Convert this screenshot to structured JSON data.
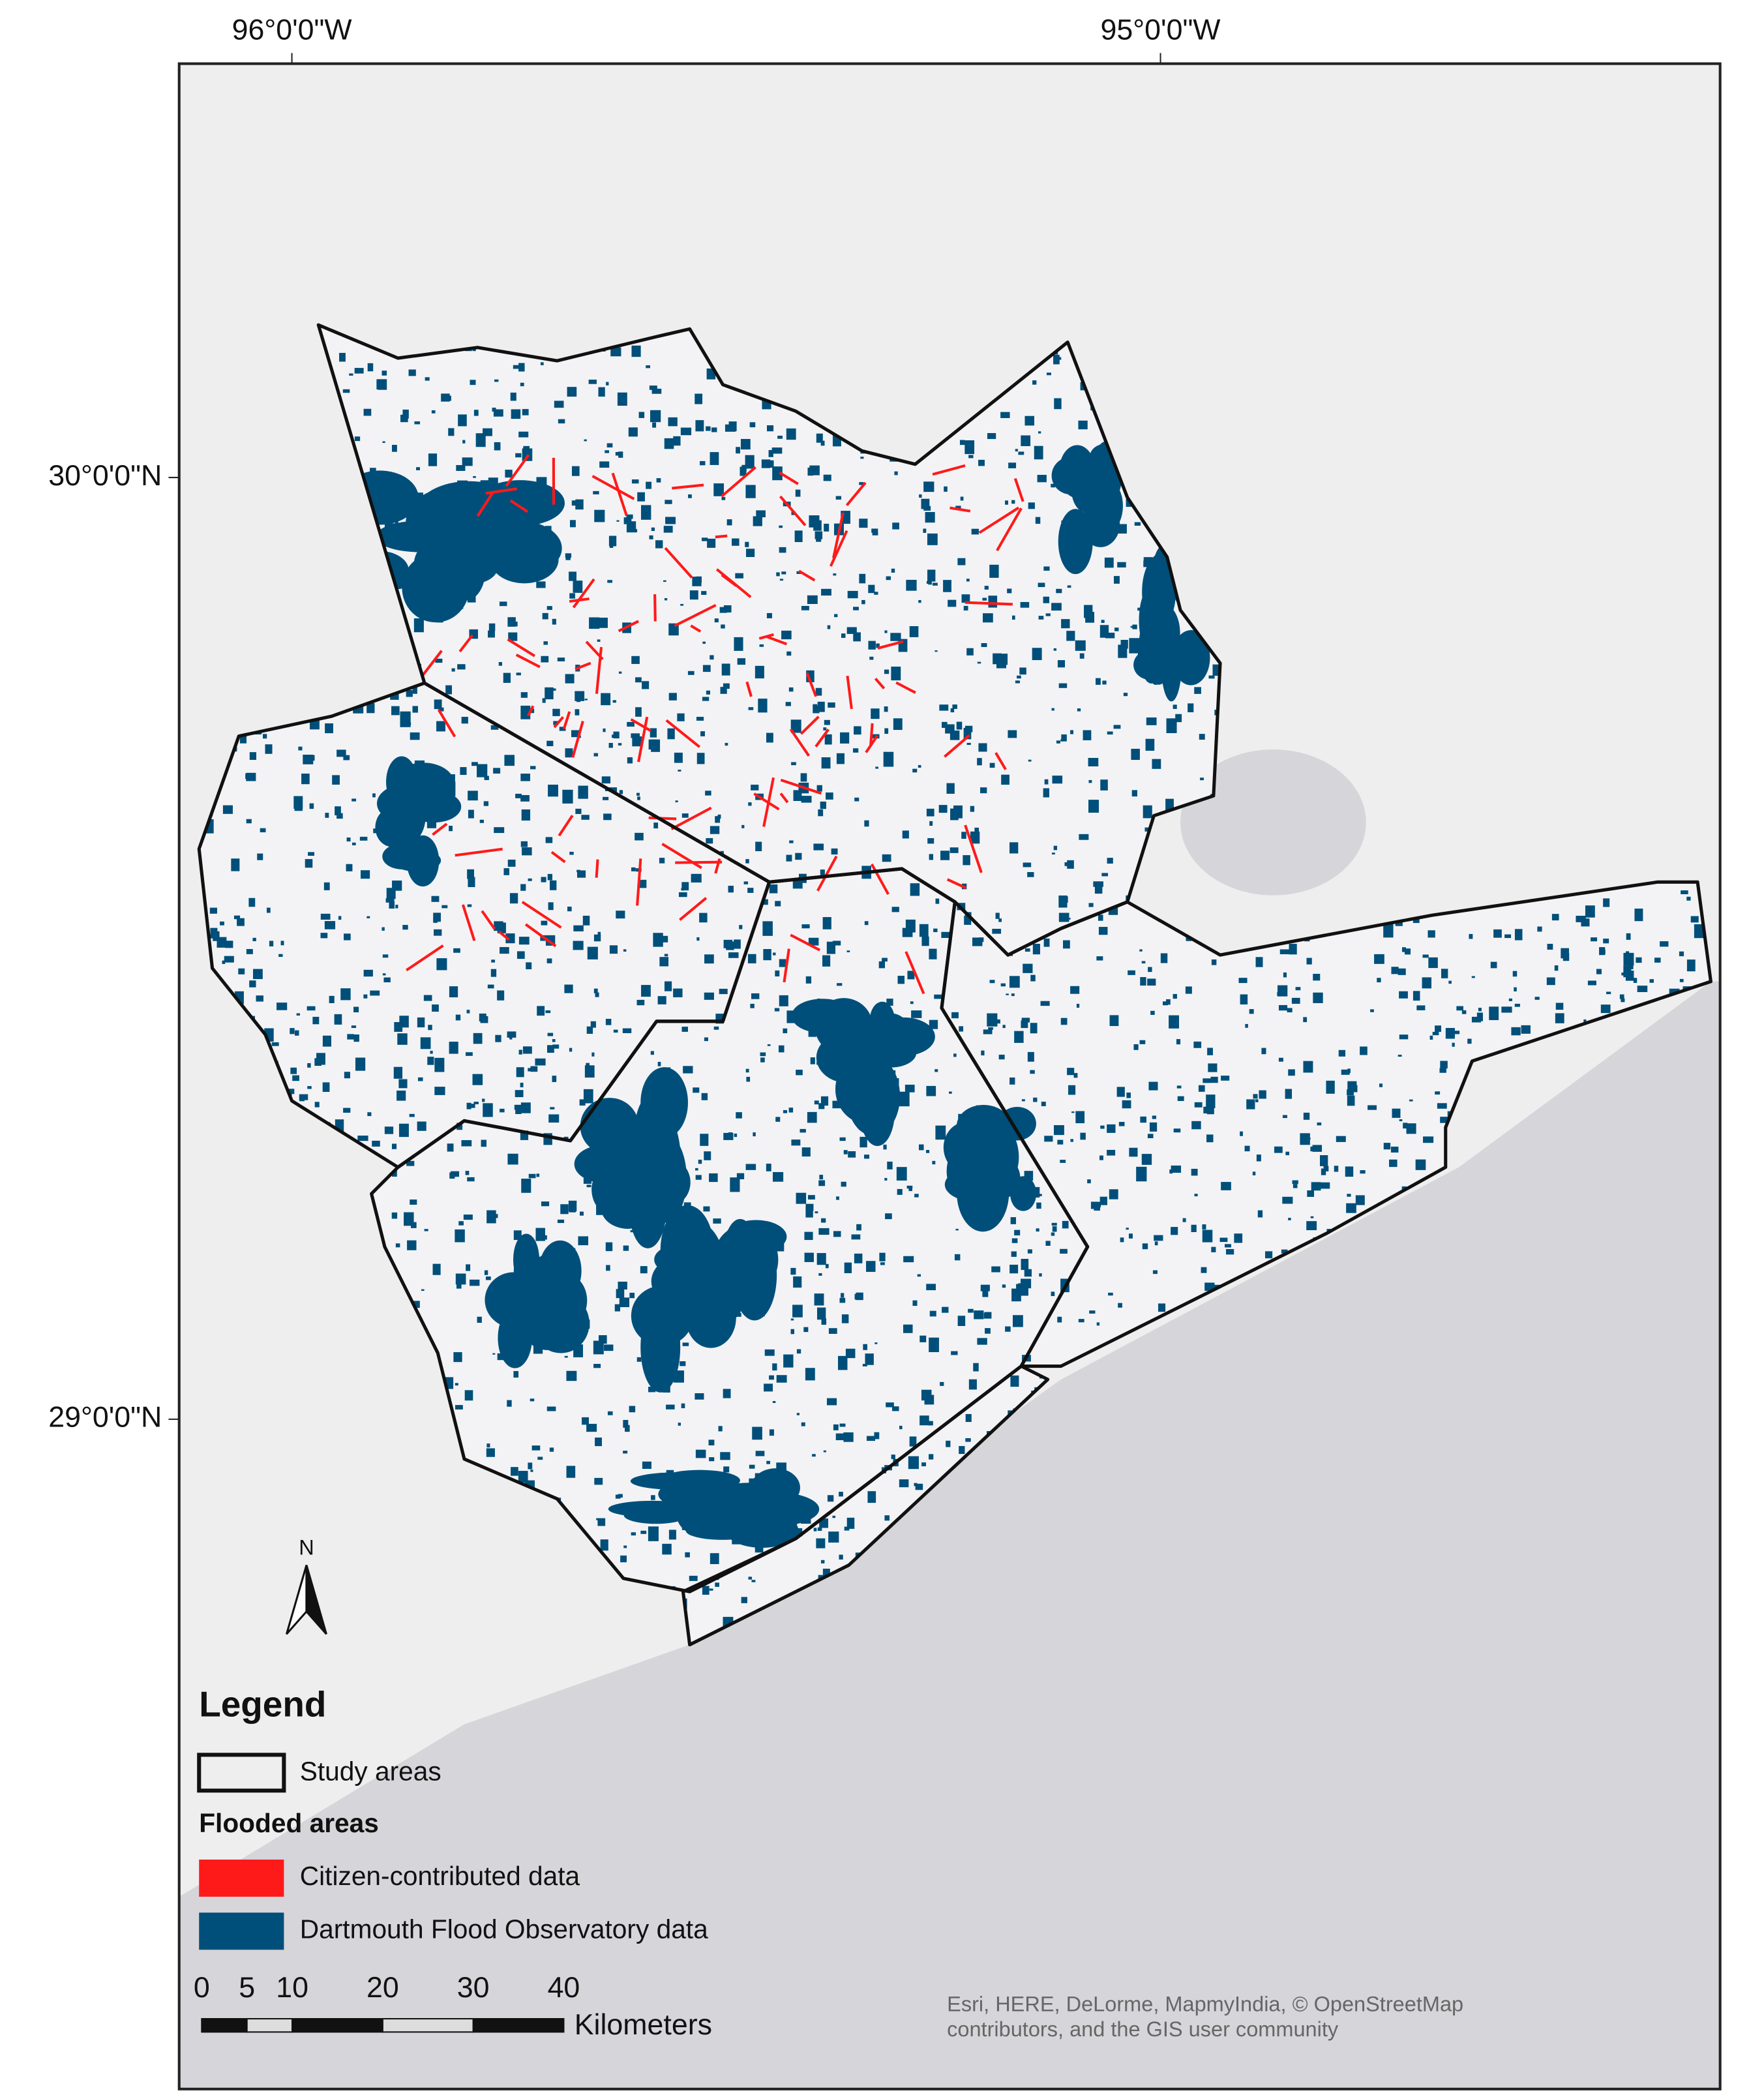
{
  "map": {
    "graticule": {
      "longitude": [
        "96°0'0\"W",
        "95°0'0\"W"
      ],
      "latitude": [
        "30°0'0\"N",
        "29°0'0\"N"
      ]
    },
    "north_arrow": "N",
    "legend": {
      "title": "Legend",
      "study_label": "Study areas",
      "section": "Flooded areas",
      "flood_items": [
        {
          "label": "Citizen-contributed data",
          "color": "#ff1a1a"
        },
        {
          "label": "Dartmouth Flood Observatory data",
          "color": "#004f7a"
        }
      ]
    },
    "scale_bar": {
      "ticks": [
        0,
        5,
        10,
        20,
        30,
        40
      ],
      "unit": "Kilometers"
    },
    "attribution": [
      "Esri, HERE, DeLorme, MapmyIndia, © OpenStreetMap",
      "contributors, and the GIS user community"
    ]
  }
}
